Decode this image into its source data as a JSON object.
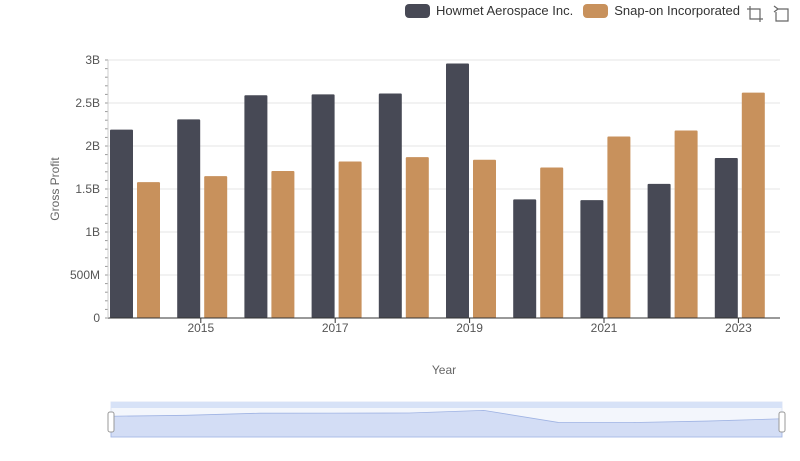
{
  "legend": {
    "items": [
      {
        "label": "Howmet Aerospace Inc.",
        "color": "#474955"
      },
      {
        "label": "Snap-on Incorporated",
        "color": "#c8915c"
      }
    ]
  },
  "toolbar": {
    "icons": [
      "zoom-area-icon",
      "zoom-reset-icon"
    ]
  },
  "chart_data": {
    "type": "bar",
    "categories": [
      "2014",
      "2015",
      "2016",
      "2017",
      "2018",
      "2019",
      "2020",
      "2021",
      "2022",
      "2023"
    ],
    "x_tick_labels": [
      "2015",
      "2017",
      "2019",
      "2021",
      "2023"
    ],
    "y_tick_labels": [
      "0",
      "500M",
      "1B",
      "1.5B",
      "2B",
      "2.5B",
      "3B"
    ],
    "series": [
      {
        "name": "Howmet Aerospace Inc.",
        "color": "#474955",
        "values": [
          2190000000,
          2310000000,
          2590000000,
          2600000000,
          2610000000,
          2960000000,
          1380000000,
          1370000000,
          1560000000,
          1860000000
        ]
      },
      {
        "name": "Snap-on Incorporated",
        "color": "#c8915c",
        "values": [
          1580000000,
          1650000000,
          1710000000,
          1820000000,
          1870000000,
          1840000000,
          1750000000,
          2110000000,
          2180000000,
          2620000000
        ]
      }
    ],
    "xlabel": "Year",
    "ylabel": "Gross Profit",
    "ylim": [
      0,
      3000000000
    ],
    "grid": true,
    "legend_position": "top-right",
    "has_zoom_slider": true
  }
}
